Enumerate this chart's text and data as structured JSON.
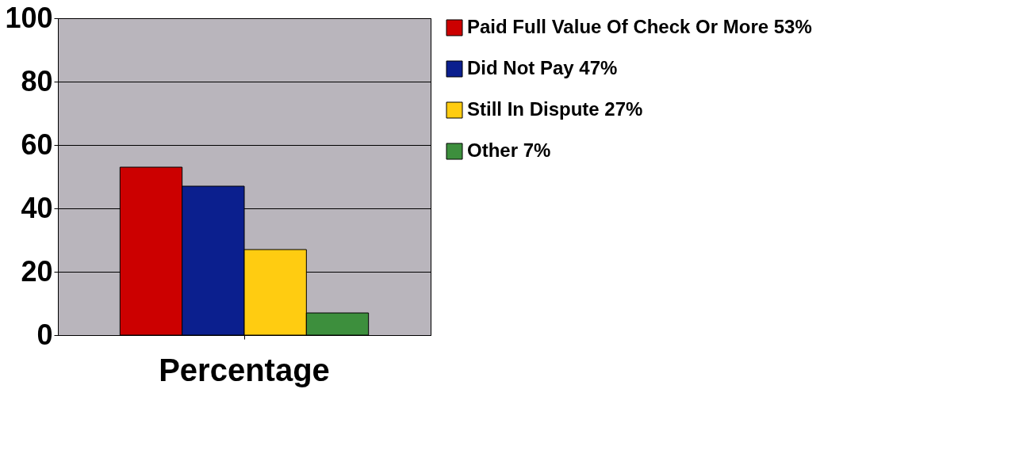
{
  "chart_data": {
    "type": "bar",
    "categories": [
      "Percentage"
    ],
    "series": [
      {
        "name": "Paid Full Value Of Check Or More 53%",
        "color": "#cc0000",
        "values": [
          53
        ]
      },
      {
        "name": "Did Not Pay 47%",
        "color": "#0b1f8e",
        "values": [
          47
        ]
      },
      {
        "name": "Still In Dispute 27%",
        "color": "#ffcc11",
        "values": [
          27
        ]
      },
      {
        "name": "Other 7%",
        "color": "#3d8f3d",
        "values": [
          7
        ]
      }
    ],
    "ylim": [
      0,
      100
    ],
    "yticks": [
      0,
      20,
      40,
      60,
      80,
      100
    ],
    "grid": "y",
    "legend": "right"
  }
}
